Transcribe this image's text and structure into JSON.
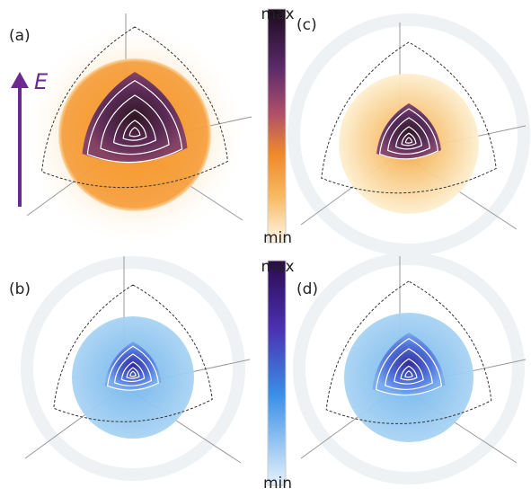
{
  "panels": [
    {
      "label": "(a)"
    },
    {
      "label": "(b)"
    },
    {
      "label": "(c)"
    },
    {
      "label": "(d)"
    }
  ],
  "colorbars": [
    {
      "max": "max",
      "min": "min"
    },
    {
      "max": "max",
      "min": "min"
    }
  ],
  "field_label": "E"
}
